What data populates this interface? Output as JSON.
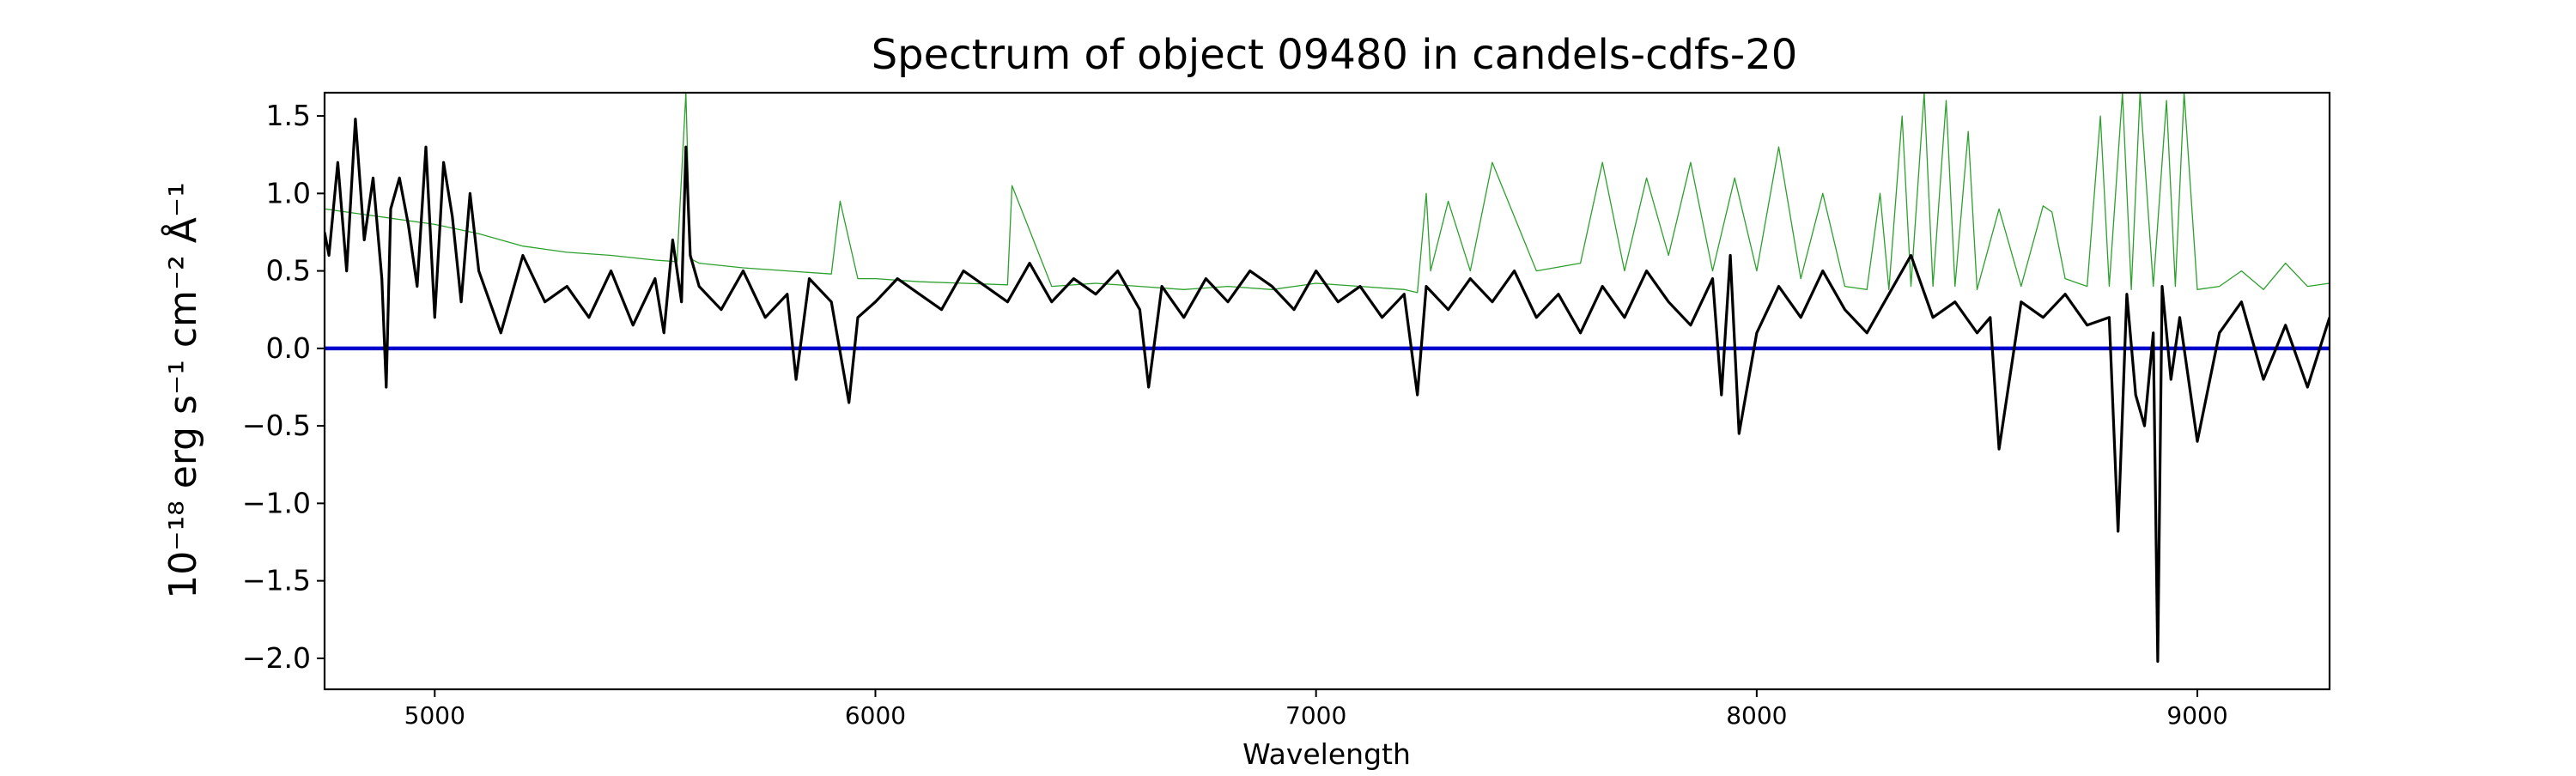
{
  "chart_data": {
    "type": "line",
    "title": "Spectrum of object 09480 in candels-cdfs-20",
    "xlabel": "Wavelength",
    "ylabel": "10⁻¹⁸ erg s⁻¹ cm⁻² Å⁻¹",
    "xlim": [
      4750,
      9300
    ],
    "ylim": [
      -2.2,
      1.65
    ],
    "x_ticks": [
      5000,
      6000,
      7000,
      8000,
      9000
    ],
    "x_tick_labels": [
      "5000",
      "6000",
      "7000",
      "8000",
      "9000"
    ],
    "y_ticks": [
      -2.0,
      -1.5,
      -1.0,
      -0.5,
      0.0,
      0.5,
      1.0,
      1.5
    ],
    "y_tick_labels": [
      "−2.0",
      "−1.5",
      "−1.0",
      "−0.5",
      "0.0",
      "0.5",
      "1.0",
      "1.5"
    ],
    "grid": false,
    "legend": "none",
    "series": [
      {
        "role": "spectrum",
        "color": "#000000",
        "x": [
          4750,
          4760,
          4780,
          4800,
          4820,
          4840,
          4860,
          4880,
          4890,
          4900,
          4920,
          4940,
          4960,
          4980,
          5000,
          5020,
          5040,
          5060,
          5080,
          5100,
          5150,
          5200,
          5250,
          5300,
          5350,
          5400,
          5450,
          5500,
          5520,
          5540,
          5560,
          5570,
          5580,
          5600,
          5650,
          5700,
          5750,
          5800,
          5820,
          5850,
          5900,
          5940,
          5960,
          6000,
          6050,
          6100,
          6150,
          6200,
          6250,
          6300,
          6350,
          6400,
          6450,
          6500,
          6550,
          6600,
          6620,
          6650,
          6700,
          6750,
          6800,
          6850,
          6900,
          6950,
          7000,
          7050,
          7100,
          7150,
          7200,
          7230,
          7250,
          7300,
          7350,
          7400,
          7450,
          7500,
          7550,
          7600,
          7650,
          7700,
          7750,
          7800,
          7850,
          7900,
          7920,
          7940,
          7960,
          8000,
          8050,
          8100,
          8150,
          8200,
          8250,
          8300,
          8350,
          8400,
          8450,
          8500,
          8530,
          8550,
          8600,
          8650,
          8700,
          8750,
          8800,
          8820,
          8840,
          8860,
          8880,
          8900,
          8910,
          8920,
          8940,
          8960,
          9000,
          9050,
          9100,
          9150,
          9200,
          9250,
          9300
        ],
        "y": [
          0.75,
          0.6,
          1.2,
          0.5,
          1.48,
          0.7,
          1.1,
          0.45,
          -0.25,
          0.9,
          1.1,
          0.8,
          0.4,
          1.3,
          0.2,
          1.2,
          0.85,
          0.3,
          1.0,
          0.5,
          0.1,
          0.6,
          0.3,
          0.4,
          0.2,
          0.5,
          0.15,
          0.45,
          0.1,
          0.7,
          0.3,
          1.3,
          0.6,
          0.4,
          0.25,
          0.5,
          0.2,
          0.35,
          -0.2,
          0.45,
          0.3,
          -0.35,
          0.2,
          0.3,
          0.45,
          0.35,
          0.25,
          0.5,
          0.4,
          0.3,
          0.55,
          0.3,
          0.45,
          0.35,
          0.5,
          0.25,
          -0.25,
          0.4,
          0.2,
          0.45,
          0.3,
          0.5,
          0.4,
          0.25,
          0.5,
          0.3,
          0.4,
          0.2,
          0.35,
          -0.3,
          0.4,
          0.25,
          0.45,
          0.3,
          0.5,
          0.2,
          0.35,
          0.1,
          0.4,
          0.2,
          0.5,
          0.3,
          0.15,
          0.45,
          -0.3,
          0.6,
          -0.55,
          0.1,
          0.4,
          0.2,
          0.5,
          0.25,
          0.1,
          0.35,
          0.6,
          0.2,
          0.3,
          0.1,
          0.2,
          -0.65,
          0.3,
          0.2,
          0.35,
          0.15,
          0.2,
          -1.18,
          0.35,
          -0.3,
          -0.5,
          0.1,
          -2.02,
          0.4,
          -0.2,
          0.2,
          -0.6,
          0.1,
          0.3,
          -0.2,
          0.15,
          -0.25,
          0.2
        ]
      },
      {
        "role": "model",
        "color": "#2ca02c",
        "x": [
          4750,
          4800,
          4850,
          4900,
          5000,
          5100,
          5200,
          5300,
          5400,
          5500,
          5550,
          5570,
          5580,
          5600,
          5700,
          5800,
          5900,
          5920,
          5960,
          6000,
          6100,
          6200,
          6300,
          6310,
          6400,
          6500,
          6600,
          6700,
          6800,
          6900,
          7000,
          7100,
          7200,
          7230,
          7250,
          7260,
          7300,
          7350,
          7400,
          7500,
          7600,
          7650,
          7700,
          7750,
          7800,
          7850,
          7900,
          7950,
          8000,
          8050,
          8100,
          8150,
          8200,
          8250,
          8280,
          8300,
          8330,
          8350,
          8380,
          8400,
          8430,
          8450,
          8480,
          8500,
          8550,
          8600,
          8650,
          8670,
          8700,
          8750,
          8780,
          8800,
          8830,
          8850,
          8870,
          8900,
          8930,
          8950,
          8970,
          9000,
          9050,
          9100,
          9150,
          9200,
          9250,
          9300
        ],
        "y": [
          0.9,
          0.88,
          0.86,
          0.84,
          0.8,
          0.74,
          0.66,
          0.62,
          0.6,
          0.57,
          0.56,
          1.65,
          0.58,
          0.55,
          0.52,
          0.5,
          0.48,
          0.95,
          0.45,
          0.45,
          0.43,
          0.42,
          0.41,
          1.05,
          0.4,
          0.42,
          0.4,
          0.38,
          0.4,
          0.38,
          0.42,
          0.4,
          0.38,
          0.36,
          1.0,
          0.5,
          0.95,
          0.5,
          1.2,
          0.5,
          0.55,
          1.2,
          0.5,
          1.1,
          0.6,
          1.2,
          0.5,
          1.1,
          0.5,
          1.3,
          0.45,
          1.0,
          0.4,
          0.38,
          1.0,
          0.38,
          1.5,
          0.4,
          1.65,
          0.4,
          1.6,
          0.4,
          1.4,
          0.38,
          0.9,
          0.4,
          0.92,
          0.88,
          0.45,
          0.4,
          1.5,
          0.4,
          1.65,
          0.38,
          1.65,
          0.4,
          1.6,
          0.4,
          1.65,
          0.38,
          0.4,
          0.5,
          0.38,
          0.55,
          0.4,
          0.42
        ]
      },
      {
        "role": "zero",
        "color": "#0000cc",
        "x": [
          4750,
          9300
        ],
        "y": [
          0.0,
          0.0
        ]
      }
    ]
  }
}
